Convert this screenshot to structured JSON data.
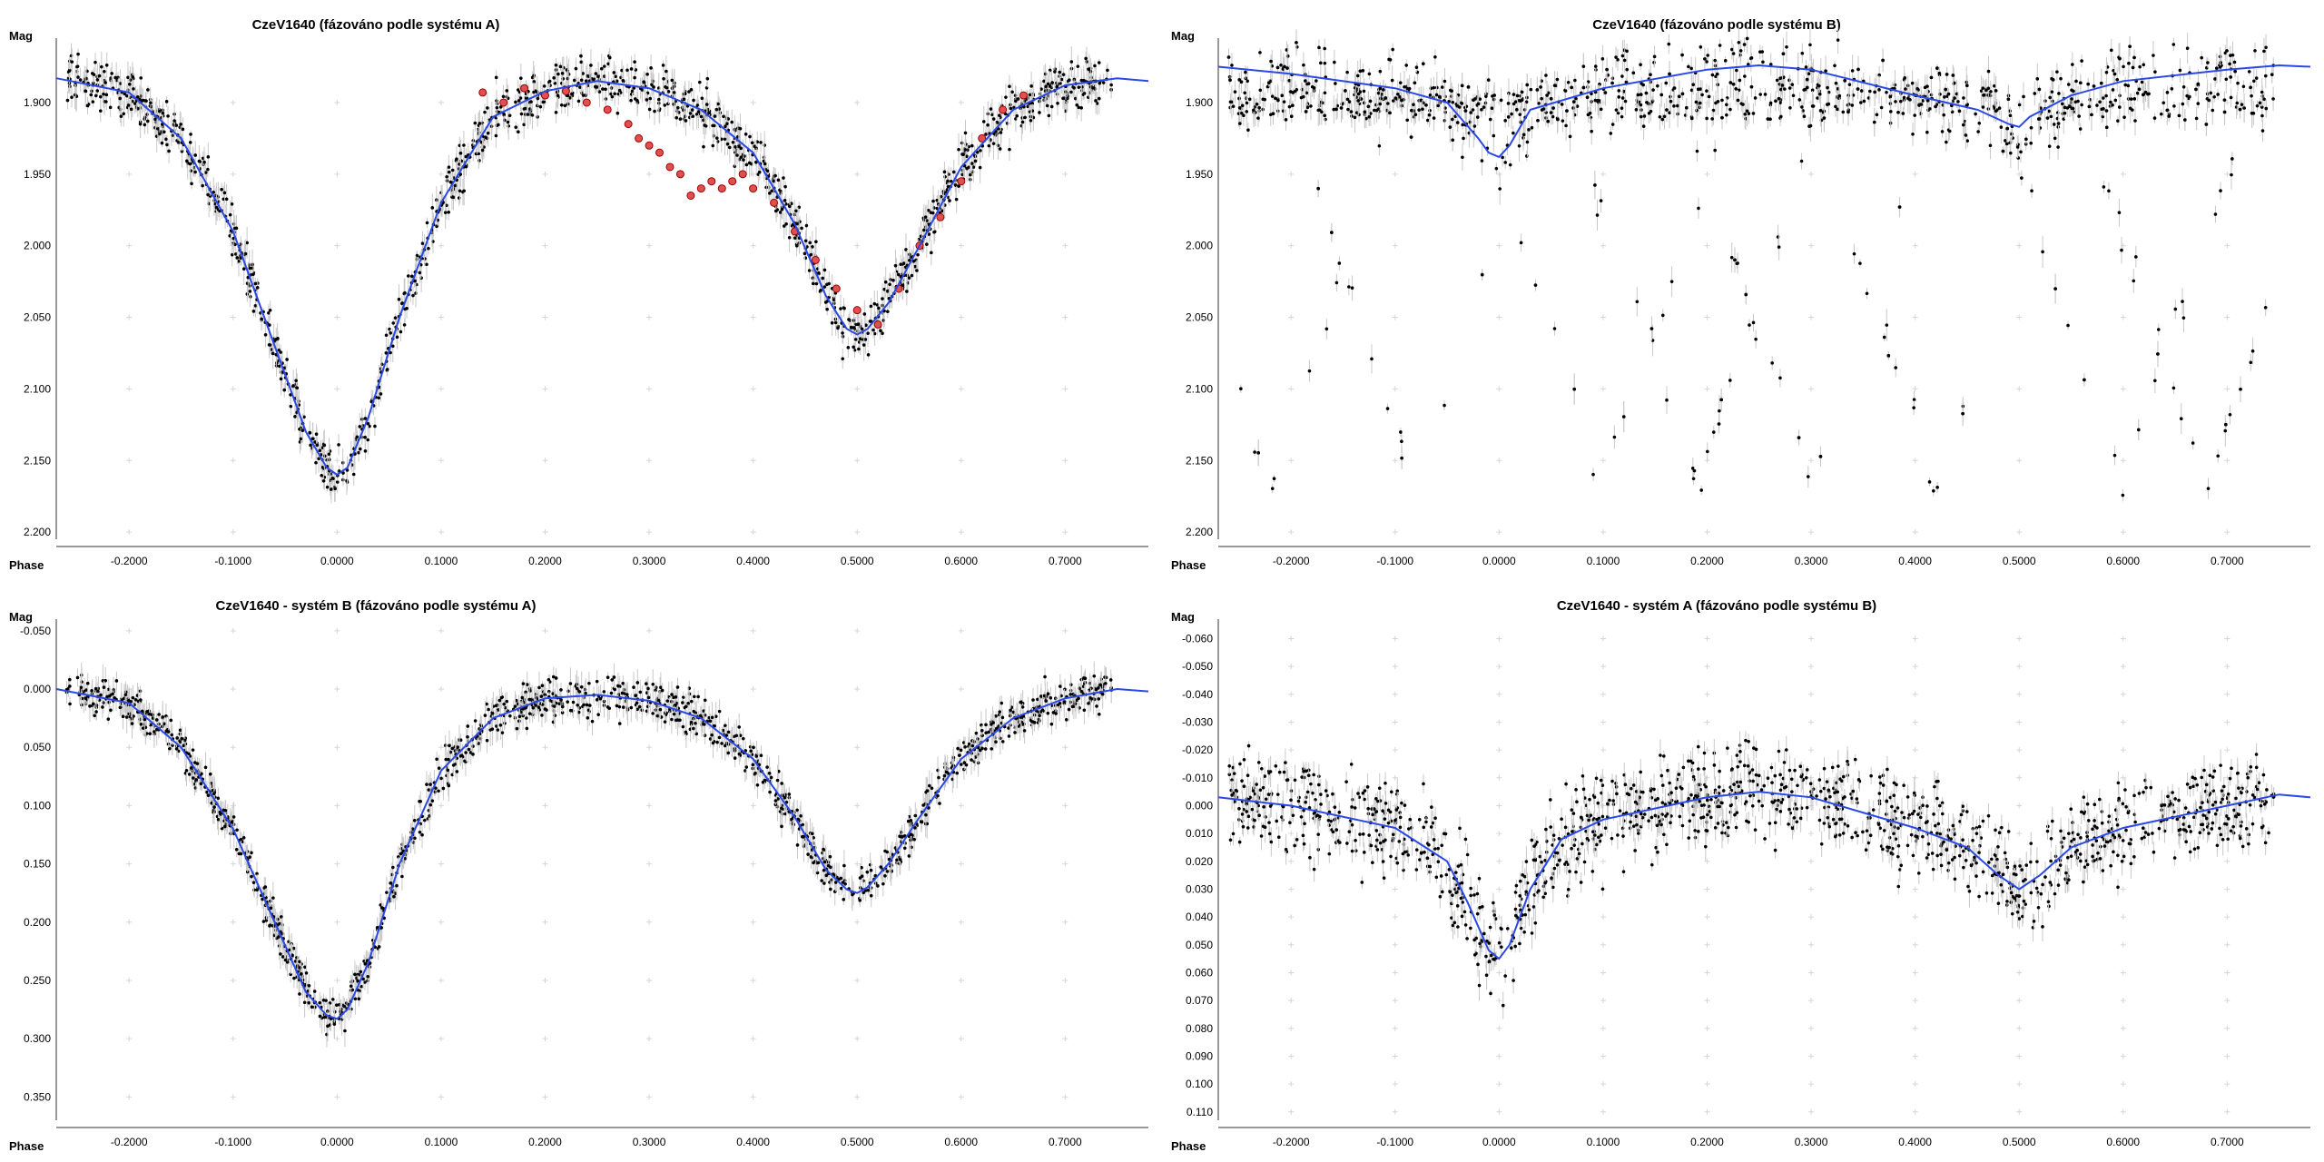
{
  "colors": {
    "points": "#000000",
    "error_bars": "#c8c8c8",
    "model_line": "#2a48e6",
    "highlight_points": "#e05050",
    "grid": "#d6d6d6"
  },
  "chart_data": [
    {
      "type": "scatter",
      "title": "CzeV1640 (fázováno podle systému A)",
      "xlabel": "Phase",
      "ylabel": "Mag",
      "y_inverted": true,
      "xlim": [
        -0.27,
        0.78
      ],
      "ylim": [
        1.855,
        2.205
      ],
      "x_ticks": [
        "-0.2000",
        "-0.1000",
        "0.0000",
        "0.1000",
        "0.2000",
        "0.3000",
        "0.4000",
        "0.5000",
        "0.6000",
        "0.7000"
      ],
      "y_ticks": [
        "1.900",
        "1.950",
        "2.000",
        "2.050",
        "2.100",
        "2.150",
        "2.200"
      ],
      "grid": "crosses",
      "series": [
        {
          "role": "model",
          "x": [
            -0.27,
            -0.2,
            -0.15,
            -0.1,
            -0.06,
            -0.03,
            -0.01,
            0.0,
            0.01,
            0.03,
            0.06,
            0.1,
            0.15,
            0.2,
            0.25,
            0.3,
            0.35,
            0.4,
            0.44,
            0.47,
            0.49,
            0.5,
            0.51,
            0.53,
            0.56,
            0.6,
            0.65,
            0.7,
            0.75,
            0.78
          ],
          "y": [
            1.883,
            1.893,
            1.925,
            1.99,
            2.07,
            2.13,
            2.155,
            2.16,
            2.155,
            2.12,
            2.05,
            1.97,
            1.91,
            1.892,
            1.885,
            1.89,
            1.905,
            1.935,
            1.985,
            2.035,
            2.058,
            2.062,
            2.058,
            2.04,
            2.0,
            1.945,
            1.905,
            1.888,
            1.883,
            1.885
          ]
        },
        {
          "role": "highlighted-observations",
          "x": [
            0.14,
            0.16,
            0.18,
            0.2,
            0.22,
            0.24,
            0.26,
            0.28,
            0.29,
            0.3,
            0.31,
            0.32,
            0.33,
            0.34,
            0.35,
            0.36,
            0.37,
            0.38,
            0.39,
            0.4,
            0.42,
            0.44,
            0.46,
            0.48,
            0.5,
            0.52,
            0.54,
            0.56,
            0.58,
            0.6,
            0.62,
            0.64,
            0.66
          ],
          "y": [
            1.893,
            1.9,
            1.89,
            1.895,
            1.892,
            1.9,
            1.905,
            1.915,
            1.925,
            1.93,
            1.935,
            1.945,
            1.95,
            1.965,
            1.96,
            1.955,
            1.96,
            1.955,
            1.95,
            1.96,
            1.97,
            1.99,
            2.01,
            2.03,
            2.045,
            2.055,
            2.03,
            2.0,
            1.98,
            1.955,
            1.925,
            1.905,
            1.895
          ]
        }
      ],
      "scatter_offsets": [],
      "scatter_band": 0.012
    },
    {
      "type": "scatter",
      "title": "CzeV1640 (fázováno podle systému B)",
      "xlabel": "Phase",
      "ylabel": "Mag",
      "y_inverted": true,
      "xlim": [
        -0.27,
        0.78
      ],
      "ylim": [
        1.855,
        2.205
      ],
      "x_ticks": [
        "-0.2000",
        "-0.1000",
        "0.0000",
        "0.1000",
        "0.2000",
        "0.3000",
        "0.4000",
        "0.5000",
        "0.6000",
        "0.7000"
      ],
      "y_ticks": [
        "1.900",
        "1.950",
        "2.000",
        "2.050",
        "2.100",
        "2.150",
        "2.200"
      ],
      "grid": "crosses",
      "series": [
        {
          "role": "model",
          "x": [
            -0.27,
            -0.2,
            -0.1,
            -0.05,
            -0.02,
            -0.01,
            0.0,
            0.01,
            0.03,
            0.1,
            0.2,
            0.25,
            0.3,
            0.4,
            0.46,
            0.49,
            0.5,
            0.51,
            0.55,
            0.6,
            0.7,
            0.75,
            0.78
          ],
          "y": [
            1.875,
            1.88,
            1.89,
            1.9,
            1.925,
            1.935,
            1.938,
            1.93,
            1.905,
            1.89,
            1.877,
            1.874,
            1.877,
            1.895,
            1.905,
            1.915,
            1.917,
            1.91,
            1.895,
            1.885,
            1.877,
            1.874,
            1.875
          ]
        }
      ],
      "scatter_band": 0.02
    },
    {
      "type": "scatter",
      "title": "CzeV1640 - systém B (fázováno podle systému A)",
      "xlabel": "Phase",
      "ylabel": "Mag",
      "y_inverted": true,
      "xlim": [
        -0.27,
        0.78
      ],
      "ylim": [
        -0.06,
        0.37
      ],
      "x_ticks": [
        "-0.2000",
        "-0.1000",
        "0.0000",
        "0.1000",
        "0.2000",
        "0.3000",
        "0.4000",
        "0.5000",
        "0.6000",
        "0.7000"
      ],
      "y_ticks": [
        "-0.050",
        "0.000",
        "0.050",
        "0.100",
        "0.150",
        "0.200",
        "0.250",
        "0.300",
        "0.350"
      ],
      "grid": "crosses",
      "series": [
        {
          "role": "model",
          "x": [
            -0.27,
            -0.2,
            -0.15,
            -0.1,
            -0.06,
            -0.03,
            -0.01,
            0.0,
            0.01,
            0.03,
            0.06,
            0.1,
            0.15,
            0.2,
            0.25,
            0.3,
            0.35,
            0.4,
            0.44,
            0.47,
            0.49,
            0.5,
            0.51,
            0.53,
            0.56,
            0.6,
            0.65,
            0.7,
            0.75,
            0.78
          ],
          "y": [
            0.0,
            0.012,
            0.05,
            0.12,
            0.2,
            0.26,
            0.28,
            0.283,
            0.275,
            0.235,
            0.15,
            0.07,
            0.025,
            0.008,
            0.005,
            0.01,
            0.025,
            0.06,
            0.11,
            0.155,
            0.172,
            0.175,
            0.17,
            0.15,
            0.11,
            0.06,
            0.025,
            0.008,
            0.0,
            0.002
          ]
        }
      ],
      "scatter_band": 0.012
    },
    {
      "type": "scatter",
      "title": "CzeV1640 - systém A (fázováno podle systému B)",
      "xlabel": "Phase",
      "ylabel": "Mag",
      "y_inverted": true,
      "xlim": [
        -0.27,
        0.78
      ],
      "ylim": [
        -0.067,
        0.113
      ],
      "x_ticks": [
        "-0.2000",
        "-0.1000",
        "0.0000",
        "0.1000",
        "0.2000",
        "0.3000",
        "0.4000",
        "0.5000",
        "0.6000",
        "0.7000"
      ],
      "y_ticks": [
        "-0.060",
        "-0.050",
        "-0.040",
        "-0.030",
        "-0.020",
        "-0.010",
        "0.000",
        "0.010",
        "0.020",
        "0.030",
        "0.040",
        "0.050",
        "0.060",
        "0.070",
        "0.080",
        "0.090",
        "0.100",
        "0.110"
      ],
      "grid": "crosses",
      "series": [
        {
          "role": "model",
          "x": [
            -0.27,
            -0.2,
            -0.1,
            -0.05,
            -0.03,
            -0.01,
            0.0,
            0.01,
            0.03,
            0.06,
            0.1,
            0.2,
            0.25,
            0.3,
            0.4,
            0.45,
            0.48,
            0.5,
            0.52,
            0.55,
            0.6,
            0.7,
            0.75,
            0.78
          ],
          "y": [
            -0.003,
            0.0,
            0.008,
            0.02,
            0.035,
            0.052,
            0.055,
            0.05,
            0.03,
            0.012,
            0.005,
            -0.003,
            -0.005,
            -0.003,
            0.008,
            0.015,
            0.025,
            0.03,
            0.025,
            0.015,
            0.008,
            0.0,
            -0.004,
            -0.003
          ]
        }
      ],
      "scatter_band": 0.012
    }
  ]
}
